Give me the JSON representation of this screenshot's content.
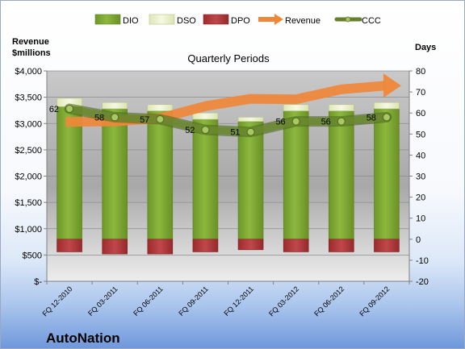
{
  "chart_data": {
    "type": "bar",
    "title": "Quarterly Periods",
    "company": "AutoNation",
    "left_axis_label_line1": "Revenue",
    "left_axis_label_line2": "$millions",
    "right_axis_label": "Days",
    "categories": [
      "FQ 12-2010",
      "FQ 03-2011",
      "FQ 06-2011",
      "FQ 09-2011",
      "FQ 12-2011",
      "FQ 03-2012",
      "FQ 06-2012",
      "FQ 09-2012"
    ],
    "left_ylim": [
      0,
      4000
    ],
    "left_ticks": [
      "$-",
      "$500",
      "$1,000",
      "$1,500",
      "$2,000",
      "$2,500",
      "$3,000",
      "$3,500",
      "$4,000"
    ],
    "left_tick_values": [
      0,
      500,
      1000,
      1500,
      2000,
      2500,
      3000,
      3500,
      4000
    ],
    "right_ylim": [
      -20,
      80
    ],
    "right_ticks": [
      "-20",
      "-10",
      "0",
      "10",
      "20",
      "30",
      "40",
      "50",
      "60",
      "70",
      "80"
    ],
    "right_tick_values": [
      -20,
      -10,
      0,
      10,
      20,
      30,
      40,
      50,
      60,
      70,
      80
    ],
    "legend_position": "top",
    "series": [
      {
        "name": "DIO",
        "axis": "right",
        "kind": "stacked-bar",
        "color": "#7fa832",
        "values": [
          63,
          62,
          61,
          57,
          56,
          61,
          61,
          62
        ]
      },
      {
        "name": "DSO",
        "axis": "right",
        "kind": "stacked-bar",
        "color": "#eef3cf",
        "values": [
          4,
          3,
          3,
          3,
          2,
          3,
          3,
          3
        ]
      },
      {
        "name": "DPO",
        "axis": "right",
        "kind": "bar-below-zero",
        "color": "#b3383b",
        "values": [
          -6,
          -7,
          -7,
          -6,
          -5,
          -6,
          -6,
          -6
        ]
      },
      {
        "name": "Revenue",
        "axis": "left",
        "kind": "arrow",
        "color": "#f0883a",
        "values": [
          3030,
          3040,
          3100,
          3330,
          3470,
          3460,
          3650,
          3720
        ]
      },
      {
        "name": "CCC",
        "axis": "right",
        "kind": "line",
        "color": "#66802e",
        "values": [
          62,
          58,
          57,
          52,
          51,
          56,
          56,
          58
        ]
      }
    ],
    "ccc_labels": [
      "62",
      "58",
      "57",
      "52",
      "51",
      "56",
      "56",
      "58"
    ],
    "grid": true
  }
}
